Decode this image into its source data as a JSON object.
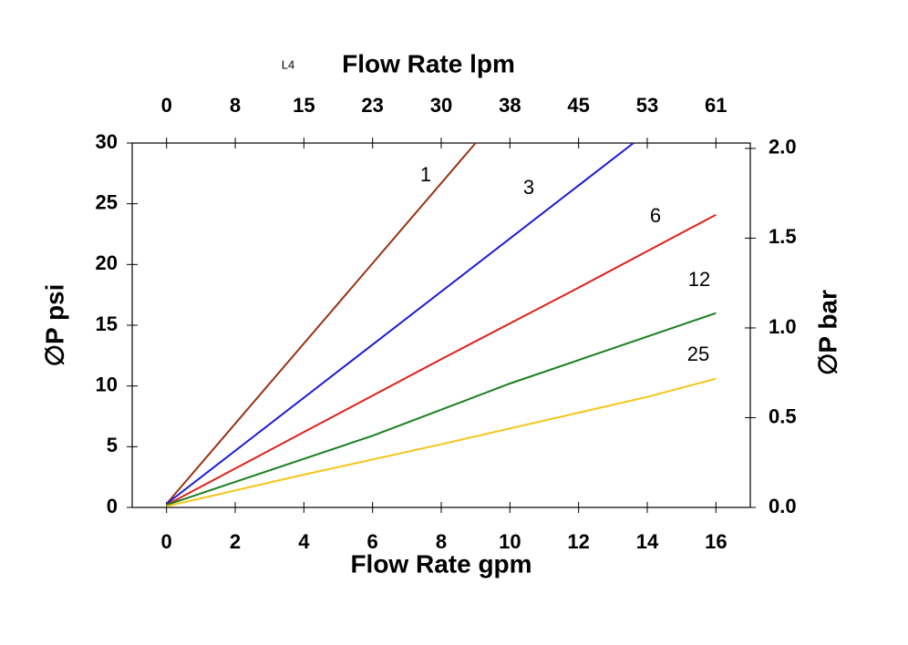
{
  "chart_data": {
    "type": "line",
    "note_label": "L4",
    "x_label": "Flow Rate gpm",
    "x2_label": "Flow Rate lpm",
    "y_label": "∅P psi",
    "y2_label": "∅P bar",
    "xlim": [
      -1,
      17
    ],
    "xticks": [
      0,
      2,
      4,
      6,
      8,
      10,
      12,
      14,
      16
    ],
    "x2lim": [
      -3.79,
      64.35
    ],
    "x2ticks": [
      0,
      {
        "value": 7.57,
        "label": "8"
      },
      {
        "value": 15.14,
        "label": "15"
      },
      {
        "value": 22.71,
        "label": "23"
      },
      {
        "value": 30.28,
        "label": "30"
      },
      {
        "value": 37.85,
        "label": "38"
      },
      {
        "value": 45.42,
        "label": "45"
      },
      {
        "value": 52.99,
        "label": "53"
      },
      {
        "value": 60.56,
        "label": "61"
      }
    ],
    "ylim": [
      0,
      30
    ],
    "yticks": [
      0,
      5,
      10,
      15,
      20,
      25,
      30
    ],
    "y2lim": [
      0,
      2.03
    ],
    "y2ticks": [
      {
        "value": 0,
        "label": "0.0"
      },
      0.5,
      {
        "value": 1,
        "label": "1.0"
      },
      1.5,
      {
        "value": 2,
        "label": "2.0"
      }
    ],
    "series": [
      {
        "name": "1",
        "color": "#993311",
        "x": [
          0,
          9
        ],
        "values": [
          0.3,
          30
        ]
      },
      {
        "name": "3",
        "color": "#1a1ad6",
        "x": [
          0,
          13.6
        ],
        "values": [
          0.3,
          30
        ]
      },
      {
        "name": "6",
        "color": "#e0201a",
        "x": [
          0,
          4,
          8,
          12,
          16
        ],
        "values": [
          0.2,
          6.2,
          12.2,
          18.1,
          24.1
        ]
      },
      {
        "name": "12",
        "color": "#1a8020",
        "x": [
          0,
          6,
          10,
          16
        ],
        "values": [
          0.2,
          5.9,
          10.2,
          16
        ]
      },
      {
        "name": "25",
        "color": "#f5c518",
        "x": [
          0,
          4,
          8,
          10,
          14,
          16
        ],
        "values": [
          0.1,
          2.7,
          5.2,
          6.5,
          9.1,
          10.6
        ]
      }
    ]
  }
}
